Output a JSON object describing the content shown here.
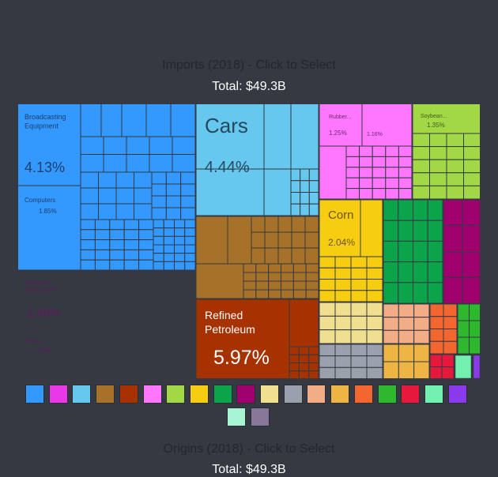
{
  "header": {
    "title": "Imports (2018) - Click to Select",
    "total": "Total: $49.3B",
    "second_title": "Origins (2018) - Click to Select",
    "second_total": "Total: $49.3B"
  },
  "chart_data": {
    "type": "treemap",
    "title": "Imports (2018) - Click to Select",
    "total": "Total: $49.3B",
    "labeled_items": [
      {
        "name": "Broadcasting Equipment",
        "value": "4.13%",
        "color": "#3399ff"
      },
      {
        "name": "Computers",
        "value": "1.85%",
        "color": "#3399ff"
      },
      {
        "name": "Cars",
        "value": "4.44%",
        "color": "#66c8ee"
      },
      {
        "name": "Rubber...",
        "value": "1.25%",
        "color": "#ff77ff"
      },
      {
        "name": "",
        "value": "1.16%",
        "color": "#ff77ff"
      },
      {
        "name": "Soybean...",
        "value": "1.35%",
        "color": "#a2d845"
      },
      {
        "name": "Corn",
        "value": "2.04%",
        "color": "#f6cd10"
      },
      {
        "name": "Packaged Medicaments",
        "value": "2.49%",
        "color": "#e838e8"
      },
      {
        "name": "Blood...",
        "value": "1.45%",
        "color": "#e838e8"
      },
      {
        "name": "Refined Petroleum",
        "value": "5.97%",
        "color": "#a63200"
      }
    ],
    "legend_colors": [
      "#3399ff",
      "#e838e8",
      "#66c8ee",
      "#a67128",
      "#a63200",
      "#ff77ff",
      "#a2d845",
      "#f6cd10",
      "#0ca44a",
      "#a0006e",
      "#efdf8e",
      "#9aa0ac",
      "#f2ac86",
      "#efb544",
      "#f4662f",
      "#2eb82e",
      "#e6193c",
      "#72f0b0",
      "#8a3aea",
      "#a8f5d5",
      "#887799"
    ]
  }
}
